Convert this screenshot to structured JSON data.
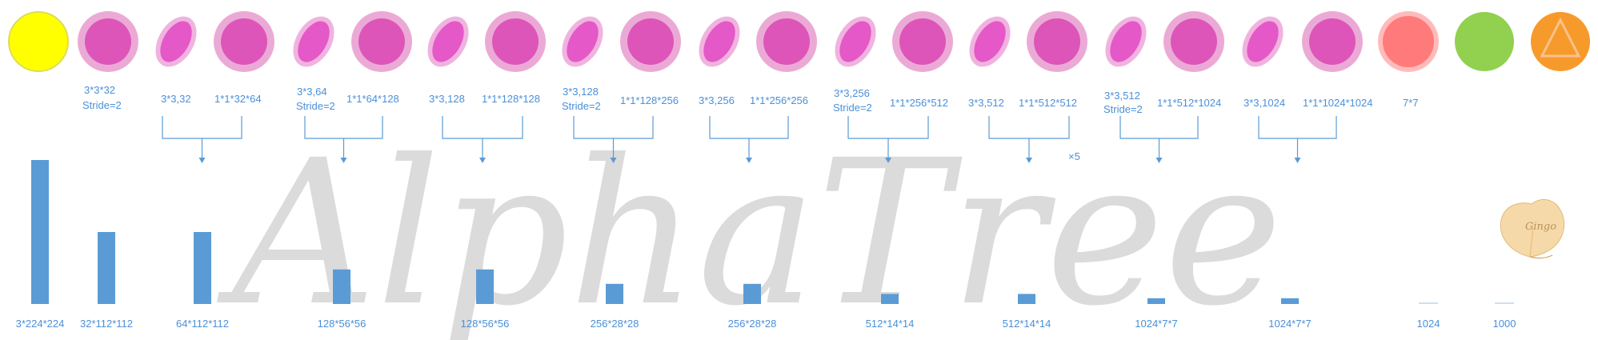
{
  "colors": {
    "input": "#ffff00",
    "input_stroke": "#dddd55",
    "pw_fill": "#dd55b9",
    "pw_ring": "#ebaad6",
    "dw_fill": "#e458c7",
    "dw_ring": "#f0b3df",
    "pool_fill": "#ff7a7a",
    "pool_ring": "#ffbbbb",
    "fc": "#92d050",
    "softmax": "#f79a2c",
    "softmax_ring": "#fac28a",
    "bar": "#5b9bd5",
    "text": "#4a90d9",
    "watermark": "#cccccc"
  },
  "icons": [
    "input-circle",
    "conv-circle",
    "depthwise-ellipse",
    "pointwise-circle",
    "pool-circle",
    "fc-circle",
    "softmax-triangle-circle",
    "ginkgo-leaf-logo"
  ],
  "layer_labels": [
    {
      "text": "3*3*32"
    },
    {
      "text": "Stride=2"
    },
    {
      "text": "3*3,32"
    },
    {
      "text": "1*1*32*64"
    },
    {
      "text": "3*3,64"
    },
    {
      "text": "Stride=2"
    },
    {
      "text": "1*1*64*128"
    },
    {
      "text": "3*3,128"
    },
    {
      "text": "1*1*128*128"
    },
    {
      "text": "3*3,128"
    },
    {
      "text": "Stride=2"
    },
    {
      "text": "1*1*128*256"
    },
    {
      "text": "3*3,256"
    },
    {
      "text": "1*1*256*256"
    },
    {
      "text": "3*3,256"
    },
    {
      "text": "Stride=2"
    },
    {
      "text": "1*1*256*512"
    },
    {
      "text": "3*3,512"
    },
    {
      "text": "1*1*512*512"
    },
    {
      "text": "×5"
    },
    {
      "text": "3*3,512"
    },
    {
      "text": "Stride=2"
    },
    {
      "text": "1*1*512*1024"
    },
    {
      "text": "3*3,1024"
    },
    {
      "text": "1*1*1024*1024"
    },
    {
      "text": "7*7"
    }
  ],
  "feature_maps": [
    {
      "label": "3*224*224",
      "level": 1.0
    },
    {
      "label": "32*112*112",
      "level": 0.5
    },
    {
      "label": "64*112*112",
      "level": 0.5
    },
    {
      "label": "128*56*56",
      "level": 0.24
    },
    {
      "label": "128*56*56",
      "level": 0.24
    },
    {
      "label": "256*28*28",
      "level": 0.14
    },
    {
      "label": "256*28*28",
      "level": 0.14
    },
    {
      "label": "512*14*14",
      "level": 0.07
    },
    {
      "label": "512*14*14",
      "level": 0.07
    },
    {
      "label": "1024*7*7",
      "level": 0.04
    },
    {
      "label": "1024*7*7",
      "level": 0.04
    },
    {
      "label": "1024",
      "level": 0.005
    },
    {
      "label": "1000",
      "level": 0.005
    }
  ],
  "watermark": "AlphaTree",
  "logo_text": "Gingo"
}
